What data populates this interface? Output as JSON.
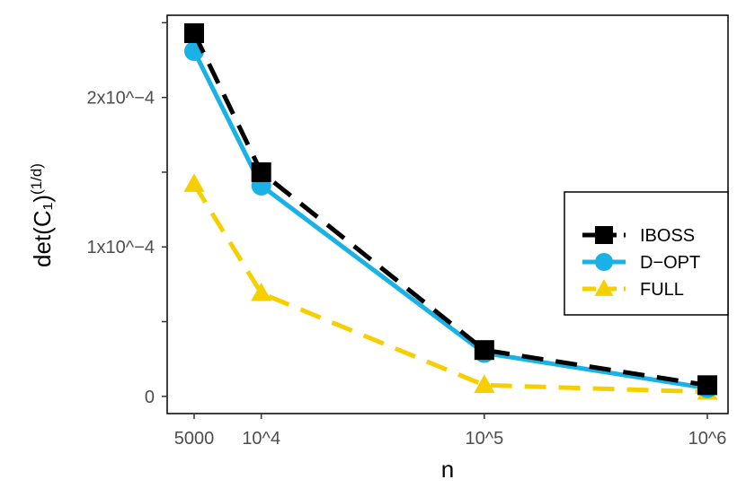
{
  "chart_data": {
    "type": "line",
    "xlabel": "n",
    "ylabel": "det(C₁)",
    "ylabel_superscript": "(1/d)",
    "x": [
      5000,
      10000,
      100000,
      1000000
    ],
    "x_scale": "log",
    "x_ticks": [
      {
        "value": 5000,
        "label": "5000"
      },
      {
        "value": 10000,
        "label": "10^4"
      },
      {
        "value": 100000,
        "label": "10^5"
      },
      {
        "value": 1000000,
        "label": "10^6"
      }
    ],
    "y_ticks": [
      {
        "value": 0,
        "label": "0"
      },
      {
        "value": 0.0001,
        "label": "1x10^−4"
      },
      {
        "value": 0.0002,
        "label": "2x10^−4"
      }
    ],
    "y_minor_ticks": [
      5e-05,
      0.00015,
      0.00025
    ],
    "ylim": [
      -1.15e-05,
      0.000255
    ],
    "series": [
      {
        "name": "IBOSS",
        "values": [
          0.000243,
          0.00015,
          3.1e-05,
          7.5e-06
        ],
        "color": "#000000",
        "marker": "square",
        "dash": "dashed"
      },
      {
        "name": "D−OPT",
        "values": [
          0.000231,
          0.000141,
          2.9e-05,
          5.5e-06
        ],
        "color": "#1AB2E6",
        "marker": "circle",
        "dash": "solid"
      },
      {
        "name": "FULL",
        "values": [
          0.000142,
          6.9e-05,
          7.5e-06,
          3e-06
        ],
        "color": "#F5CF00",
        "marker": "triangle",
        "dash": "dashed"
      }
    ],
    "legend_position": "right",
    "grid": false
  }
}
